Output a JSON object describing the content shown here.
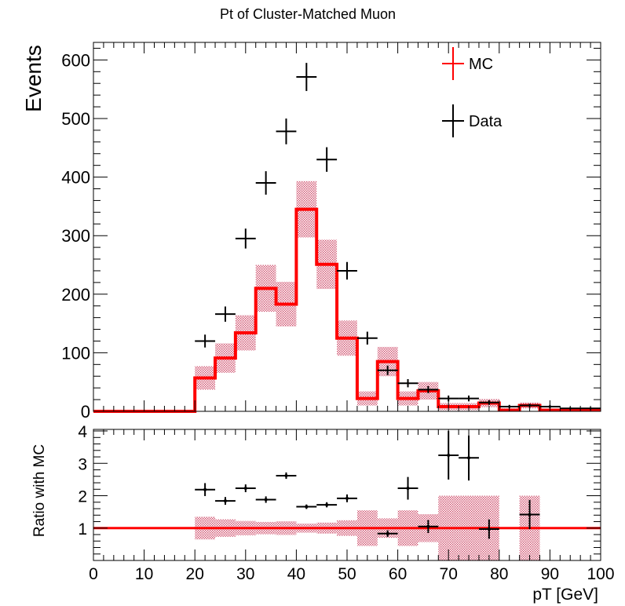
{
  "chart_data": [
    {
      "type": "histogram",
      "title": "Pt of Cluster-Matched Muon",
      "xlabel": "",
      "ylabel": "Events",
      "xlim": [
        0,
        100
      ],
      "ylim": [
        0,
        630
      ],
      "y_ticks": [
        0,
        100,
        200,
        300,
        400,
        500,
        600
      ],
      "grid": false,
      "legend_position": "top-right",
      "legend": [
        {
          "label": "MC",
          "color": "#ff0000"
        },
        {
          "label": "Data",
          "color": "#000000"
        }
      ],
      "colors": {
        "mc": "#ff0000",
        "mc_band": "#c0143c",
        "data": "#000000"
      },
      "bin_edges": [
        0,
        4,
        8,
        12,
        16,
        20,
        24,
        28,
        32,
        36,
        40,
        44,
        48,
        52,
        56,
        60,
        64,
        68,
        72,
        76,
        80,
        84,
        88,
        92,
        96,
        100
      ],
      "series": [
        {
          "name": "MC",
          "values": [
            0,
            0,
            0,
            0,
            0,
            57,
            91,
            134,
            210,
            183,
            345,
            251,
            125,
            22,
            85,
            22,
            35,
            8,
            8,
            14,
            2,
            10,
            2,
            2,
            2
          ],
          "errors": [
            0,
            0,
            0,
            0,
            0,
            20,
            25,
            30,
            40,
            38,
            48,
            42,
            30,
            12,
            25,
            12,
            15,
            6,
            6,
            7,
            3,
            5,
            2,
            2,
            2
          ]
        },
        {
          "name": "Data",
          "values": [
            0,
            0,
            0,
            0,
            0,
            120,
            166,
            295,
            390,
            478,
            571,
            430,
            240,
            125,
            70,
            48,
            37,
            22,
            22,
            15,
            8,
            10,
            8,
            5,
            5
          ],
          "errors": [
            0,
            0,
            0,
            0,
            0,
            11,
            13,
            17,
            20,
            22,
            24,
            21,
            15,
            11,
            8,
            7,
            6,
            5,
            5,
            4,
            3,
            3,
            3,
            2,
            2
          ]
        }
      ]
    },
    {
      "type": "scatter",
      "title": "",
      "xlabel": "pT [GeV]",
      "ylabel": "Ratio with MC",
      "xlim": [
        0,
        100
      ],
      "ylim": [
        0,
        4.05
      ],
      "x_ticks": [
        0,
        10,
        20,
        30,
        40,
        50,
        60,
        70,
        80,
        90,
        100
      ],
      "y_ticks": [
        1,
        2,
        3,
        4
      ],
      "reference_line": 1,
      "band_bins": [
        20,
        24,
        28,
        32,
        36,
        40,
        44,
        48,
        52,
        56,
        60,
        64,
        68,
        72,
        76,
        80,
        84,
        88
      ],
      "band_half_widths": [
        0.35,
        0.27,
        0.22,
        0.19,
        0.21,
        0.14,
        0.17,
        0.24,
        0.55,
        0.3,
        0.55,
        0.43,
        1.0,
        1.0,
        1.0,
        0,
        1.0
      ],
      "points": {
        "x": [
          22,
          26,
          30,
          34,
          38,
          42,
          46,
          50,
          58,
          62,
          66,
          70,
          74,
          78,
          86
        ],
        "y": [
          2.19,
          1.84,
          2.23,
          1.88,
          2.62,
          1.66,
          1.72,
          1.92,
          0.83,
          2.23,
          1.05,
          3.25,
          3.17,
          0.97,
          1.42
        ],
        "errors": [
          0.2,
          0.12,
          0.12,
          0.1,
          0.1,
          0.07,
          0.08,
          0.12,
          0.1,
          0.35,
          0.2,
          0.75,
          0.7,
          0.3,
          0.45
        ]
      }
    }
  ]
}
